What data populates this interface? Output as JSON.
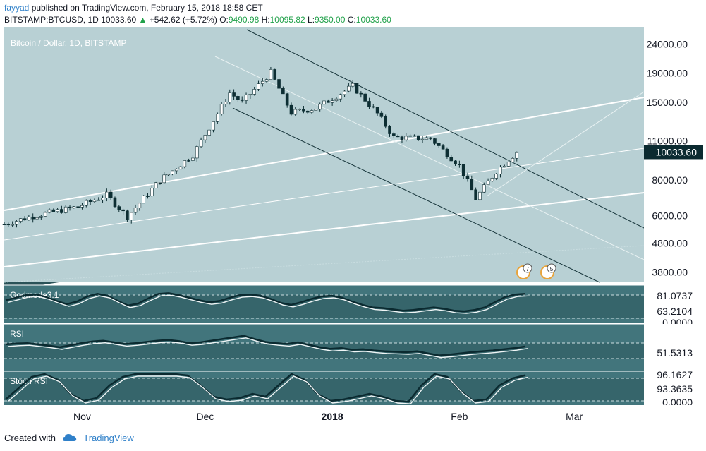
{
  "header": {
    "author": "fayyad",
    "published_text": "published on TradingView.com, February 15, 2018 18:58 CET",
    "symbol": "BITSTAMP:BTCUSD, 1D",
    "last": "10033.60",
    "change_arrow": "▲",
    "change": "+542.62 (+5.72%)",
    "o_label": "O:",
    "o": "9490.98",
    "h_label": "H:",
    "h": "10095.82",
    "l_label": "L:",
    "l": "9350.00",
    "c_label": "C:",
    "c": "10033.60"
  },
  "footer": {
    "created_with": "Created with",
    "brand": "TradingView"
  },
  "colors": {
    "up": "#ffffff",
    "down": "#0d2e33",
    "accent": "#21a14a",
    "brand": "#2f80c9",
    "price_tag": "#0b2a30"
  },
  "chart_data": [
    {
      "type": "candlestick",
      "title": "Bitcoin / Dollar, 1D, BITSTAMP",
      "scale": "log",
      "ylim": [
        3500,
        27000
      ],
      "y_ticks": [
        "24000.00",
        "19000.00",
        "15000.00",
        "11000.00",
        "8000.00",
        "6000.00",
        "4800.00",
        "3800.00"
      ],
      "x_ticks": [
        "Nov",
        "Dec",
        "2018",
        "Feb",
        "Mar"
      ],
      "x_range": [
        "2017-10-13",
        "2018-03-18"
      ],
      "last_price_label": "10033.60",
      "anchor_points": [
        {
          "date": "2017-10-13",
          "close": 5600
        },
        {
          "date": "2017-10-20",
          "close": 5980
        },
        {
          "date": "2017-10-31",
          "close": 6450
        },
        {
          "date": "2017-11-07",
          "close": 7100
        },
        {
          "date": "2017-11-12",
          "close": 5950
        },
        {
          "date": "2017-11-20",
          "close": 8000
        },
        {
          "date": "2017-11-28",
          "close": 9800
        },
        {
          "date": "2017-12-07",
          "close": 16200
        },
        {
          "date": "2017-12-10",
          "close": 15000
        },
        {
          "date": "2017-12-17",
          "close": 19100
        },
        {
          "date": "2017-12-22",
          "close": 13800
        },
        {
          "date": "2017-12-28",
          "close": 14300
        },
        {
          "date": "2018-01-06",
          "close": 17100
        },
        {
          "date": "2018-01-12",
          "close": 13700
        },
        {
          "date": "2018-01-16",
          "close": 11300
        },
        {
          "date": "2018-01-25",
          "close": 11200
        },
        {
          "date": "2018-02-01",
          "close": 9000
        },
        {
          "date": "2018-02-05",
          "close": 6900
        },
        {
          "date": "2018-02-10",
          "close": 8600
        },
        {
          "date": "2018-02-15",
          "close": 10033.6
        }
      ],
      "events": [
        "7",
        "5"
      ]
    },
    {
      "type": "line",
      "title": "Godmode3.1",
      "values": [
        "81.0737",
        "63.2104",
        "0.0000"
      ],
      "series": [
        {
          "values": [
            62,
            70,
            78,
            80,
            72,
            60,
            50,
            58,
            74,
            82,
            76,
            60,
            46,
            52,
            68,
            82,
            84,
            78,
            70,
            62,
            56,
            60,
            70,
            78,
            80,
            76,
            66,
            54,
            48,
            56,
            66,
            74,
            76,
            70,
            58,
            48,
            40,
            38,
            34,
            30,
            32,
            36,
            40,
            36,
            30,
            28,
            32,
            40,
            56,
            72,
            80,
            82
          ]
        }
      ]
    },
    {
      "type": "line",
      "title": "RSI",
      "values": [
        "51.5313"
      ],
      "series": [
        {
          "values": [
            57,
            59,
            60,
            57,
            54,
            50,
            55,
            60,
            64,
            66,
            62,
            58,
            60,
            63,
            66,
            68,
            65,
            60,
            62,
            66,
            70,
            74,
            78,
            70,
            63,
            60,
            58,
            62,
            56,
            50,
            46,
            48,
            44,
            45,
            42,
            40,
            39,
            38,
            40,
            35,
            30,
            32,
            35,
            38,
            40,
            42,
            45,
            48,
            52
          ]
        }
      ]
    },
    {
      "type": "line",
      "title": "Stoch RSI",
      "values": [
        "96.1627",
        "93.3635",
        "0.0000"
      ],
      "series": [
        {
          "values": [
            10,
            50,
            90,
            100,
            80,
            30,
            5,
            15,
            60,
            90,
            100,
            100,
            100,
            100,
            95,
            60,
            20,
            10,
            15,
            30,
            20,
            60,
            100,
            80,
            30,
            5,
            10,
            20,
            30,
            20,
            5,
            2,
            60,
            100,
            90,
            40,
            5,
            10,
            60,
            85,
            96
          ]
        }
      ]
    }
  ]
}
